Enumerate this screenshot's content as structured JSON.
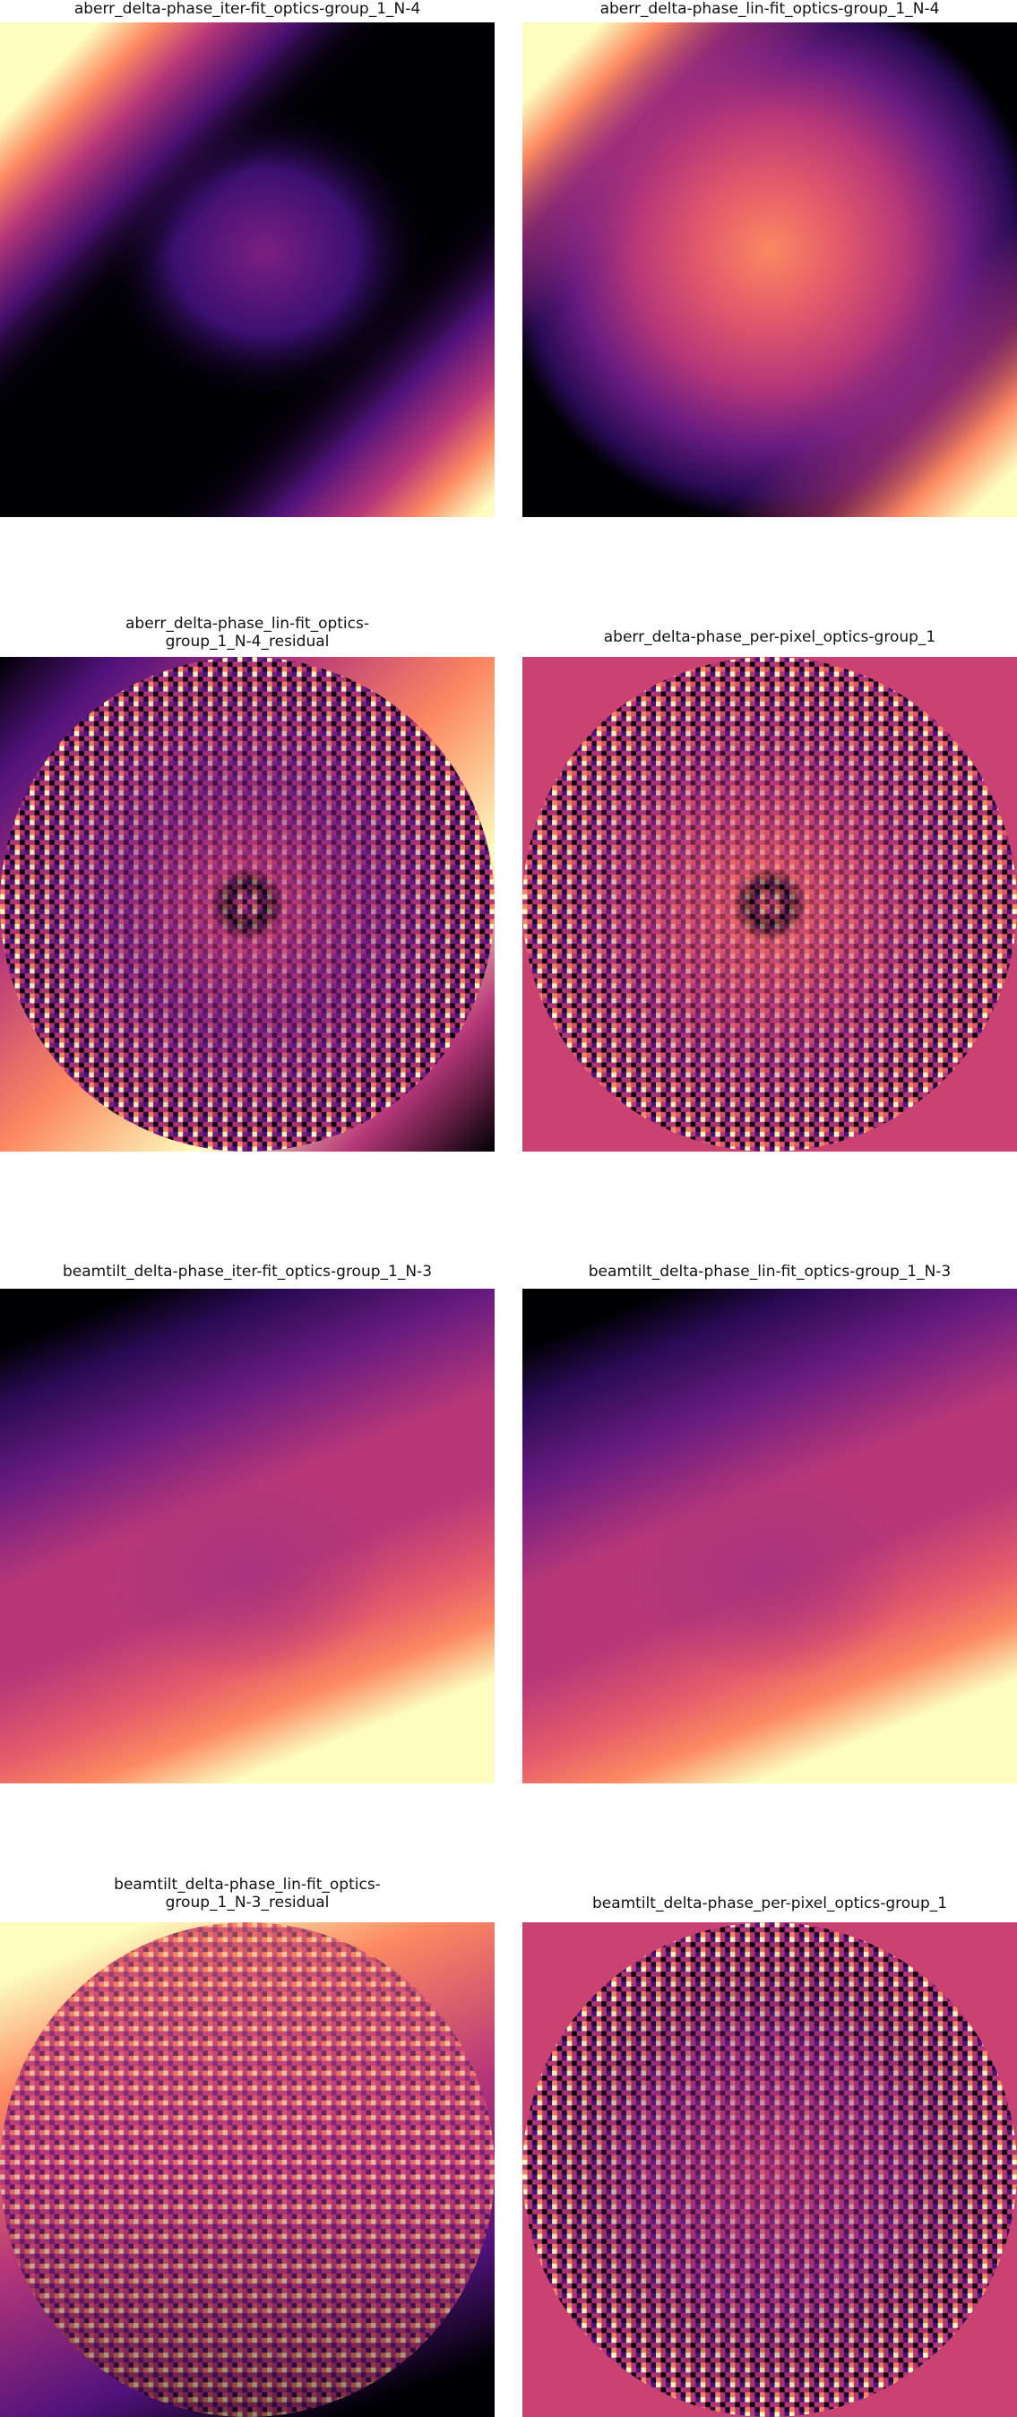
{
  "colormap": "magma",
  "colors": {
    "magma_dark": "#000004",
    "magma_purple": "#51127c",
    "magma_magenta": "#b73779",
    "magma_coral": "#fc8961",
    "magma_cream": "#fcfdbf",
    "flat_background": "#c94272"
  },
  "panels": [
    {
      "title": "aberr_delta-phase_iter-fit_optics-group_1_N-4",
      "kind": "smooth-aberr-iter"
    },
    {
      "title": "aberr_delta-phase_lin-fit_optics-group_1_N-4",
      "kind": "smooth-aberr-lin"
    },
    {
      "title": "aberr_delta-phase_lin-fit_optics-\ngroup_1_N-4_residual",
      "kind": "noisy-aberr-residual"
    },
    {
      "title": "aberr_delta-phase_per-pixel_optics-group_1",
      "kind": "noisy-aberr-per-pixel"
    },
    {
      "title": "beamtilt_delta-phase_iter-fit_optics-group_1_N-3",
      "kind": "smooth-beamtilt"
    },
    {
      "title": "beamtilt_delta-phase_lin-fit_optics-group_1_N-3",
      "kind": "smooth-beamtilt"
    },
    {
      "title": "beamtilt_delta-phase_lin-fit_optics-\ngroup_1_N-3_residual",
      "kind": "noisy-beamtilt-residual"
    },
    {
      "title": "beamtilt_delta-phase_per-pixel_optics-group_1",
      "kind": "noisy-beamtilt-per-pixel"
    }
  ]
}
